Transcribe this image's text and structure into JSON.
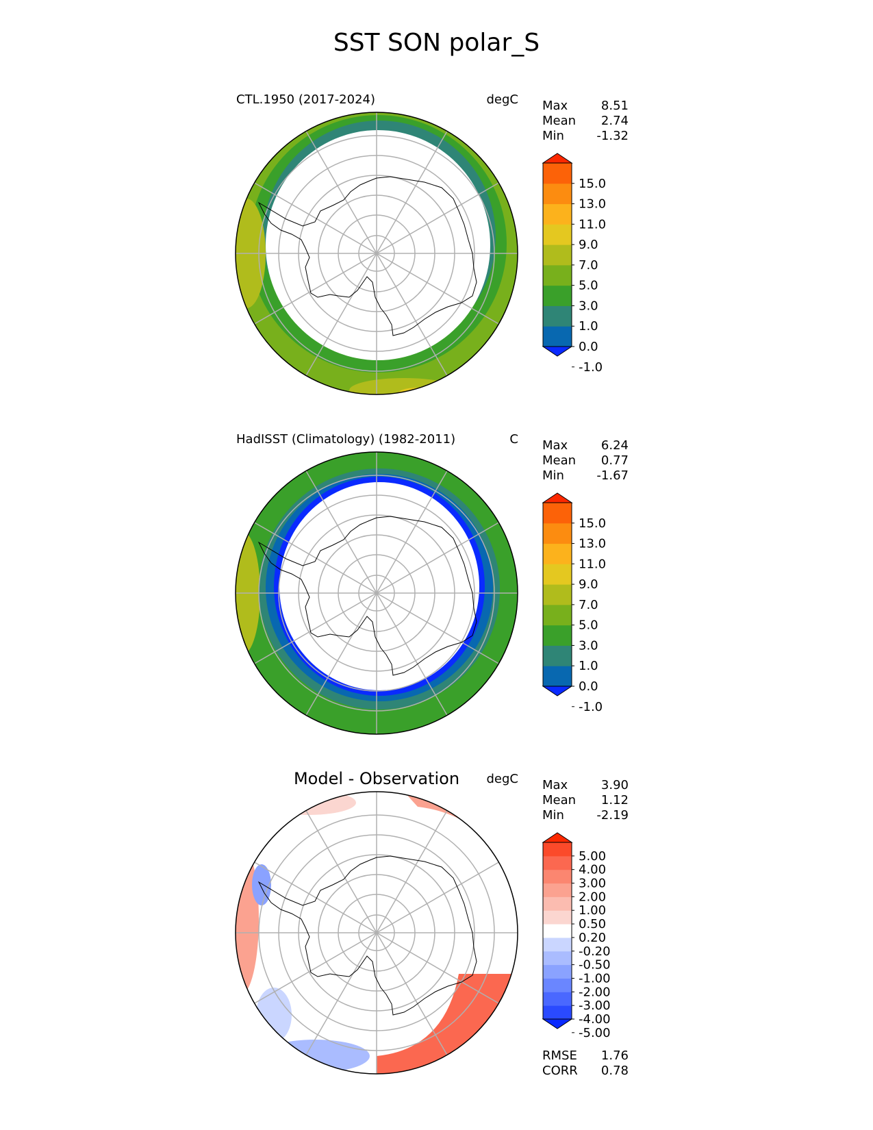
{
  "figure_title": "SST SON polar_S",
  "panels": [
    {
      "title": "CTL.1950 (2017-2024)",
      "units": "degC",
      "stats": {
        "max_label": "Max",
        "max": "8.51",
        "mean_label": "Mean",
        "mean": "2.74",
        "min_label": "Min",
        "min": "-1.32"
      },
      "colorbar": {
        "ticks": [
          "15.0",
          "13.0",
          "11.0",
          "9.0",
          "7.0",
          "5.0",
          "3.0",
          "1.0",
          "0.0",
          "-1.0"
        ],
        "colors": [
          "#0a2aff",
          "#0868b0",
          "#2f8576",
          "#3aa02a",
          "#78b01c",
          "#b0bc1c",
          "#e4c820",
          "#fcb21c",
          "#fc8c10",
          "#fc6208",
          "#fc2800"
        ]
      }
    },
    {
      "title": "HadISST (Climatology) (1982-2011)",
      "units": "C",
      "stats": {
        "max_label": "Max",
        "max": "6.24",
        "mean_label": "Mean",
        "mean": "0.77",
        "min_label": "Min",
        "min": "-1.67"
      },
      "colorbar": {
        "ticks": [
          "15.0",
          "13.0",
          "11.0",
          "9.0",
          "7.0",
          "5.0",
          "3.0",
          "1.0",
          "0.0",
          "-1.0"
        ],
        "colors": [
          "#0a2aff",
          "#0868b0",
          "#2f8576",
          "#3aa02a",
          "#78b01c",
          "#b0bc1c",
          "#e4c820",
          "#fcb21c",
          "#fc8c10",
          "#fc6208",
          "#fc2800"
        ]
      }
    },
    {
      "title": "Model - Observation",
      "units": "degC",
      "stats": {
        "max_label": "Max",
        "max": "3.90",
        "mean_label": "Mean",
        "mean": "1.12",
        "min_label": "Min",
        "min": "-2.19"
      },
      "colorbar": {
        "ticks": [
          "5.00",
          "4.00",
          "3.00",
          "2.00",
          "1.00",
          "0.50",
          "0.20",
          "-0.20",
          "-0.50",
          "-1.00",
          "-2.00",
          "-3.00",
          "-4.00",
          "-5.00"
        ],
        "colors": [
          "#0a2aff",
          "#2a4aff",
          "#4a68ff",
          "#6a86ff",
          "#8aa2ff",
          "#aabcff",
          "#cad6ff",
          "#ffffff",
          "#fbd6d0",
          "#fbbcb0",
          "#fba290",
          "#fb8670",
          "#fb6850",
          "#fb4a2a",
          "#fc2800"
        ]
      },
      "error_stats": {
        "rmse_label": "RMSE",
        "rmse": "1.76",
        "corr_label": "CORR",
        "corr": "0.78"
      }
    }
  ],
  "map": {
    "projection": "south polar stereographic",
    "region": "Antarctica / Southern Ocean",
    "land_color": "#ffffff",
    "coastline_color": "#000000",
    "gridline_color": "#b0b0b0"
  }
}
